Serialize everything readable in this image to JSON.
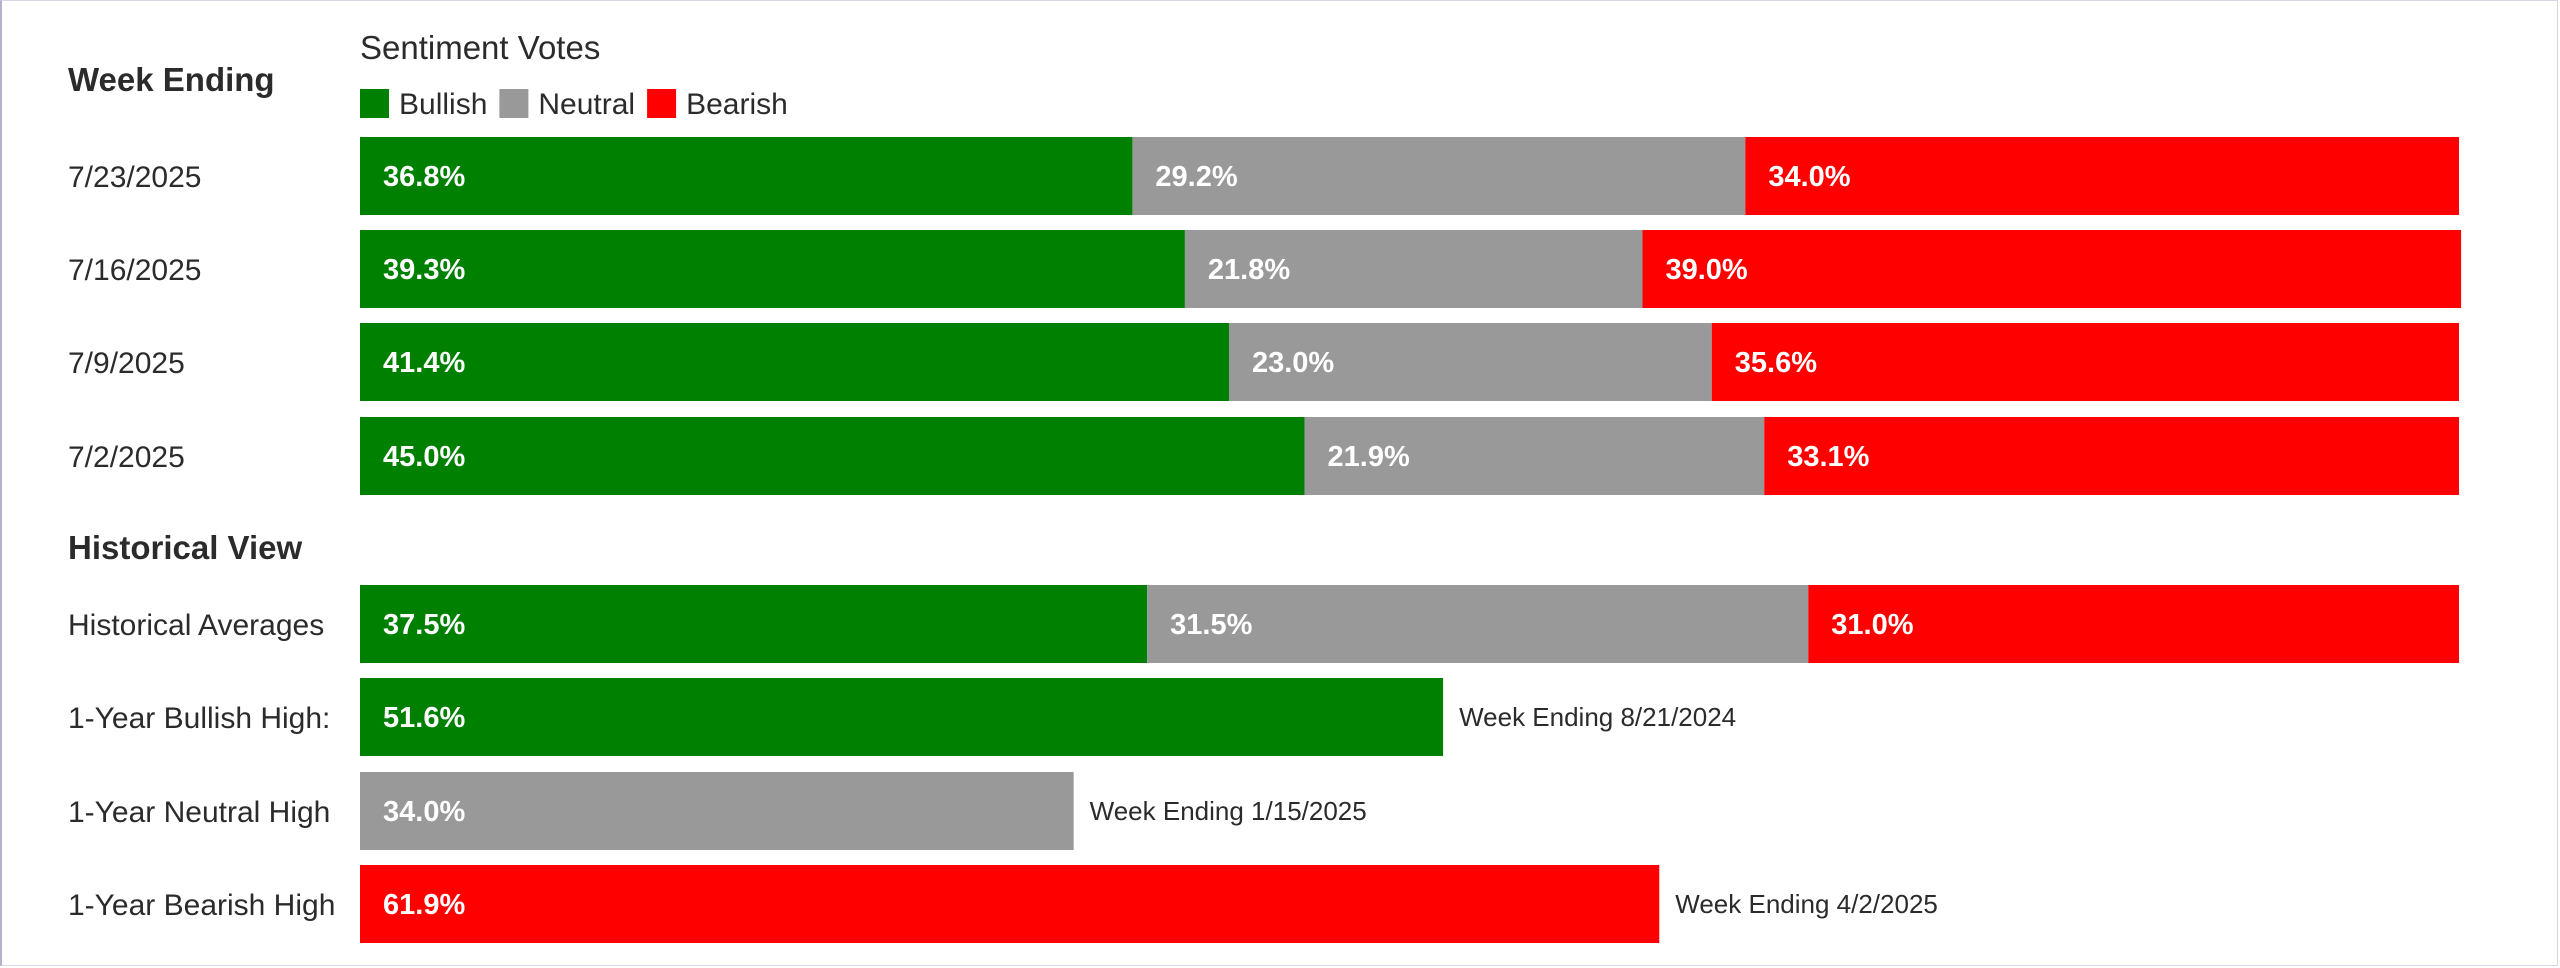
{
  "chart_data": {
    "type": "bar",
    "orientation": "horizontal",
    "stacked": true,
    "legend": {
      "title": "Sentiment Votes",
      "placement": "top-left",
      "entries": [
        {
          "name": "Bullish",
          "color": "#008000"
        },
        {
          "name": "Neutral",
          "color": "#999999"
        },
        {
          "name": "Bearish",
          "color": "#ff0000"
        }
      ]
    },
    "series": [
      {
        "name": "Bullish",
        "color": "#008000"
      },
      {
        "name": "Neutral",
        "color": "#999999"
      },
      {
        "name": "Bearish",
        "color": "#ff0000"
      }
    ],
    "xlim": [
      0,
      100
    ],
    "unit": "%",
    "grid": false,
    "sections": [
      {
        "title": "Week Ending",
        "rows": [
          {
            "label": "7/23/2025",
            "values": [
              36.8,
              29.2,
              34.0
            ]
          },
          {
            "label": "7/16/2025",
            "values": [
              39.3,
              21.8,
              39.0
            ]
          },
          {
            "label": "7/9/2025",
            "values": [
              41.4,
              23.0,
              35.6
            ]
          },
          {
            "label": "7/2/2025",
            "values": [
              45.0,
              21.9,
              33.1
            ]
          }
        ]
      },
      {
        "title": "Historical View",
        "rows": [
          {
            "label": "Historical Averages",
            "values": [
              37.5,
              31.5,
              31.0
            ]
          },
          {
            "label": "1-Year Bullish High:",
            "series": "Bullish",
            "value": 51.6,
            "note": "Week Ending 8/21/2024"
          },
          {
            "label": "1-Year Neutral High",
            "series": "Neutral",
            "value": 34.0,
            "note": "Week Ending 1/15/2025"
          },
          {
            "label": "1-Year Bearish High",
            "series": "Bearish",
            "value": 61.9,
            "note": "Week Ending 4/2/2025"
          }
        ]
      }
    ]
  }
}
